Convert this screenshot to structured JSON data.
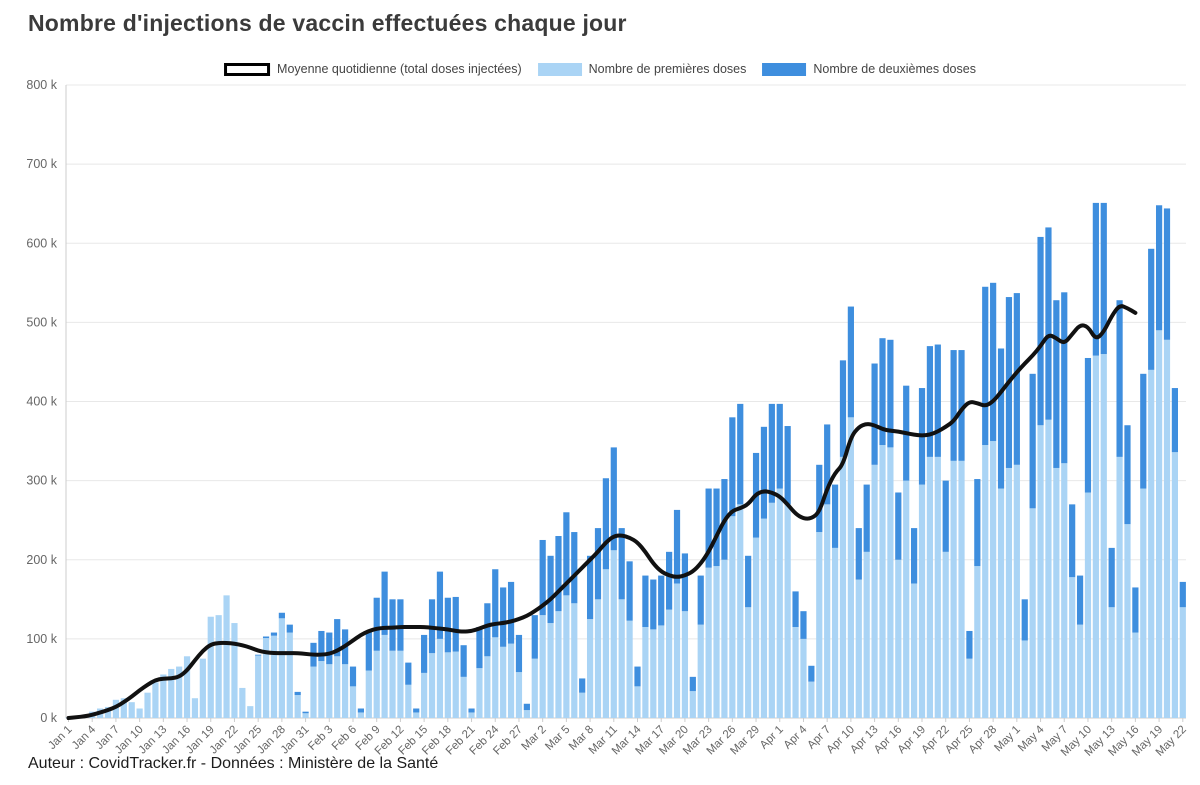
{
  "title": "Nombre d'injections de vaccin effectuées chaque jour",
  "footer": "Auteur : CovidTracker.fr - Données : Ministère de la Santé",
  "legend": {
    "average": "Moyenne quotidienne (total doses injectées)",
    "first": "Nombre de premières doses",
    "second": "Nombre de deuxièmes doses"
  },
  "colors": {
    "first_dose": "#AAD4F5",
    "second_dose": "#3E8EDE",
    "average_line": "#111111",
    "grid": "#e8e8e8",
    "axis_line": "#cccccc",
    "axis_text": "#666666"
  },
  "chart_data": {
    "type": "bar",
    "stacked": true,
    "unit": "thousands of doses (k)",
    "title": "Nombre d'injections de vaccin effectuées chaque jour",
    "xlabel": "",
    "ylabel": "",
    "ylim": [
      0,
      800
    ],
    "grid": "horizontal",
    "legend_position": "top-center",
    "y_tick_labels": [
      "0 k",
      "100 k",
      "200 k",
      "300 k",
      "400 k",
      "500 k",
      "600 k",
      "700 k",
      "800 k"
    ],
    "x_tick_every": 3,
    "dates": [
      "Jan 1",
      "Jan 2",
      "Jan 3",
      "Jan 4",
      "Jan 5",
      "Jan 6",
      "Jan 7",
      "Jan 8",
      "Jan 9",
      "Jan 10",
      "Jan 11",
      "Jan 12",
      "Jan 13",
      "Jan 14",
      "Jan 15",
      "Jan 16",
      "Jan 17",
      "Jan 18",
      "Jan 19",
      "Jan 20",
      "Jan 21",
      "Jan 22",
      "Jan 23",
      "Jan 24",
      "Jan 25",
      "Jan 26",
      "Jan 27",
      "Jan 28",
      "Jan 29",
      "Jan 30",
      "Jan 31",
      "Feb 1",
      "Feb 2",
      "Feb 3",
      "Feb 4",
      "Feb 5",
      "Feb 6",
      "Feb 7",
      "Feb 8",
      "Feb 9",
      "Feb 10",
      "Feb 11",
      "Feb 12",
      "Feb 13",
      "Feb 14",
      "Feb 15",
      "Feb 16",
      "Feb 17",
      "Feb 18",
      "Feb 19",
      "Feb 20",
      "Feb 21",
      "Feb 22",
      "Feb 23",
      "Feb 24",
      "Feb 25",
      "Feb 26",
      "Feb 27",
      "Feb 28",
      "Mar 1",
      "Mar 2",
      "Mar 3",
      "Mar 4",
      "Mar 5",
      "Mar 6",
      "Mar 7",
      "Mar 8",
      "Mar 9",
      "Mar 10",
      "Mar 11",
      "Mar 12",
      "Mar 13",
      "Mar 14",
      "Mar 15",
      "Mar 16",
      "Mar 17",
      "Mar 18",
      "Mar 19",
      "Mar 20",
      "Mar 21",
      "Mar 22",
      "Mar 23",
      "Mar 24",
      "Mar 25",
      "Mar 26",
      "Mar 27",
      "Mar 28",
      "Mar 29",
      "Mar 30",
      "Mar 31",
      "Apr 1",
      "Apr 2",
      "Apr 3",
      "Apr 4",
      "Apr 5",
      "Apr 6",
      "Apr 7",
      "Apr 8",
      "Apr 9",
      "Apr 10",
      "Apr 11",
      "Apr 12",
      "Apr 13",
      "Apr 14",
      "Apr 15",
      "Apr 16",
      "Apr 17",
      "Apr 18",
      "Apr 19",
      "Apr 20",
      "Apr 21",
      "Apr 22",
      "Apr 23",
      "Apr 24",
      "Apr 25",
      "Apr 26",
      "Apr 27",
      "Apr 28",
      "Apr 29",
      "Apr 30",
      "May 1",
      "May 2",
      "May 3",
      "May 4",
      "May 5",
      "May 6",
      "May 7",
      "May 8",
      "May 9",
      "May 10",
      "May 11",
      "May 12",
      "May 13",
      "May 14",
      "May 15",
      "May 16",
      "May 17",
      "May 18",
      "May 19",
      "May 20",
      "May 21",
      "May 22"
    ],
    "series": [
      {
        "name": "Nombre de premières doses",
        "type": "bar",
        "values": [
          0.5,
          0.8,
          0.8,
          8,
          12,
          14,
          23,
          25,
          20,
          12,
          32,
          45,
          55,
          62,
          65,
          78,
          25,
          75,
          128,
          130,
          155,
          120,
          38,
          15,
          79,
          101,
          104,
          126,
          108,
          29,
          6,
          65,
          72,
          68,
          78,
          68,
          40,
          7,
          60,
          85,
          105,
          85,
          85,
          42,
          7,
          57,
          82,
          100,
          83,
          84,
          52,
          7,
          63,
          78,
          102,
          90,
          94,
          58,
          10,
          75,
          130,
          120,
          135,
          155,
          145,
          32,
          125,
          150,
          188,
          212,
          150,
          123,
          40,
          115,
          112,
          117,
          137,
          170,
          135,
          34,
          118,
          190,
          192,
          200,
          255,
          270,
          140,
          228,
          252,
          272,
          290,
          270,
          115,
          100,
          46,
          235,
          270,
          215,
          330,
          380,
          175,
          210,
          320,
          345,
          342,
          200,
          300,
          170,
          295,
          330,
          330,
          210,
          325,
          325,
          75,
          192,
          345,
          350,
          290,
          316,
          320,
          98,
          265,
          370,
          377,
          316,
          322,
          178,
          118,
          285,
          458,
          460,
          140,
          330,
          245,
          108,
          290,
          440,
          490,
          478,
          336,
          140
        ]
      },
      {
        "name": "Nombre de deuxièmes doses",
        "type": "bar",
        "values": [
          0,
          0,
          0,
          0,
          0,
          0,
          0,
          0,
          0,
          0,
          0,
          0,
          0,
          0,
          0,
          0,
          0,
          0,
          0,
          0,
          0,
          0,
          0,
          0,
          1,
          2,
          4,
          7,
          10,
          4,
          2,
          30,
          38,
          40,
          47,
          44,
          25,
          5,
          50,
          67,
          80,
          65,
          65,
          28,
          5,
          48,
          68,
          85,
          69,
          69,
          40,
          5,
          52,
          67,
          86,
          75,
          78,
          47,
          8,
          55,
          95,
          85,
          95,
          105,
          90,
          18,
          80,
          90,
          115,
          130,
          90,
          75,
          25,
          65,
          63,
          63,
          73,
          93,
          73,
          18,
          62,
          100,
          98,
          102,
          125,
          127,
          65,
          107,
          116,
          125,
          107,
          99,
          45,
          35,
          20,
          85,
          101,
          80,
          122,
          140,
          65,
          85,
          128,
          135,
          136,
          85,
          120,
          70,
          122,
          140,
          142,
          90,
          140,
          140,
          35,
          110,
          200,
          200,
          177,
          216,
          217,
          52,
          170,
          238,
          243,
          212,
          216,
          92,
          62,
          170,
          193,
          191,
          75,
          198,
          125,
          57,
          145,
          153,
          158,
          166,
          81,
          32
        ]
      },
      {
        "name": "Moyenne quotidienne (total doses injectées)",
        "type": "line",
        "values": [
          0,
          1,
          2,
          4,
          7,
          10,
          14,
          20,
          27,
          35,
          42,
          48,
          50,
          50,
          52,
          60,
          73,
          85,
          93,
          95,
          95,
          94,
          92,
          89,
          85,
          83,
          82,
          82,
          82,
          82,
          81,
          80,
          80,
          81,
          85,
          91,
          98,
          105,
          110,
          113,
          114,
          114,
          115,
          115,
          115,
          115,
          114,
          113,
          112,
          110,
          109,
          110,
          113,
          117,
          119,
          120,
          122,
          125,
          129,
          135,
          142,
          150,
          160,
          170,
          180,
          190,
          200,
          210,
          222,
          230,
          231,
          228,
          222,
          210,
          195,
          185,
          180,
          178,
          180,
          185,
          195,
          210,
          230,
          250,
          262,
          265,
          270,
          283,
          287,
          285,
          280,
          270,
          258,
          252,
          252,
          260,
          290,
          310,
          320,
          355,
          368,
          372,
          370,
          365,
          363,
          362,
          360,
          358,
          357,
          358,
          362,
          368,
          375,
          390,
          400,
          398,
          394,
          400,
          412,
          425,
          437,
          448,
          458,
          470,
          485,
          480,
          473,
          485,
          497,
          495,
          478,
          488,
          508,
          522,
          518,
          512,
          null,
          null,
          null,
          null,
          null,
          null
        ]
      }
    ]
  }
}
